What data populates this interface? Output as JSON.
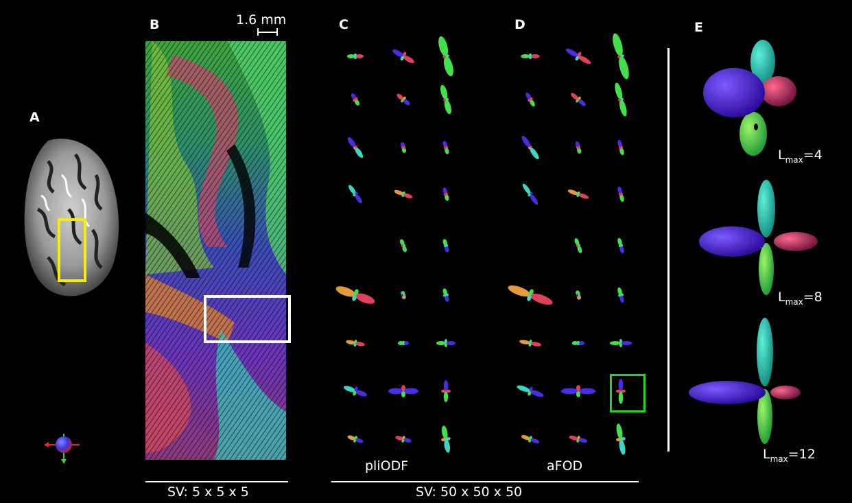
{
  "panels": {
    "a": "A",
    "b": "B",
    "c": "C",
    "d": "D",
    "e": "E"
  },
  "scale_bar_text": "1.6 mm",
  "captions": {
    "plio": "pliODF",
    "afod": "aFOD",
    "sv_small": "SV: 5 x 5 x 5",
    "sv_large": "SV: 50 x 50 x 50"
  },
  "lmax": {
    "prefix": "L",
    "sub": "max",
    "values": [
      "=4",
      "=8",
      "=12"
    ]
  },
  "colors": {
    "roi_yellow": "#f7ec11",
    "roi_white": "#ffffff",
    "roi_green": "#22d81f",
    "lobe_blue": "#4a2be6",
    "lobe_green": "#43e04b",
    "lobe_red": "#e0405a",
    "lobe_cyan": "#38d9c4",
    "lobe_orange": "#e39a3b"
  },
  "icons": {
    "orientation": "orientation-sphere-icon"
  }
}
